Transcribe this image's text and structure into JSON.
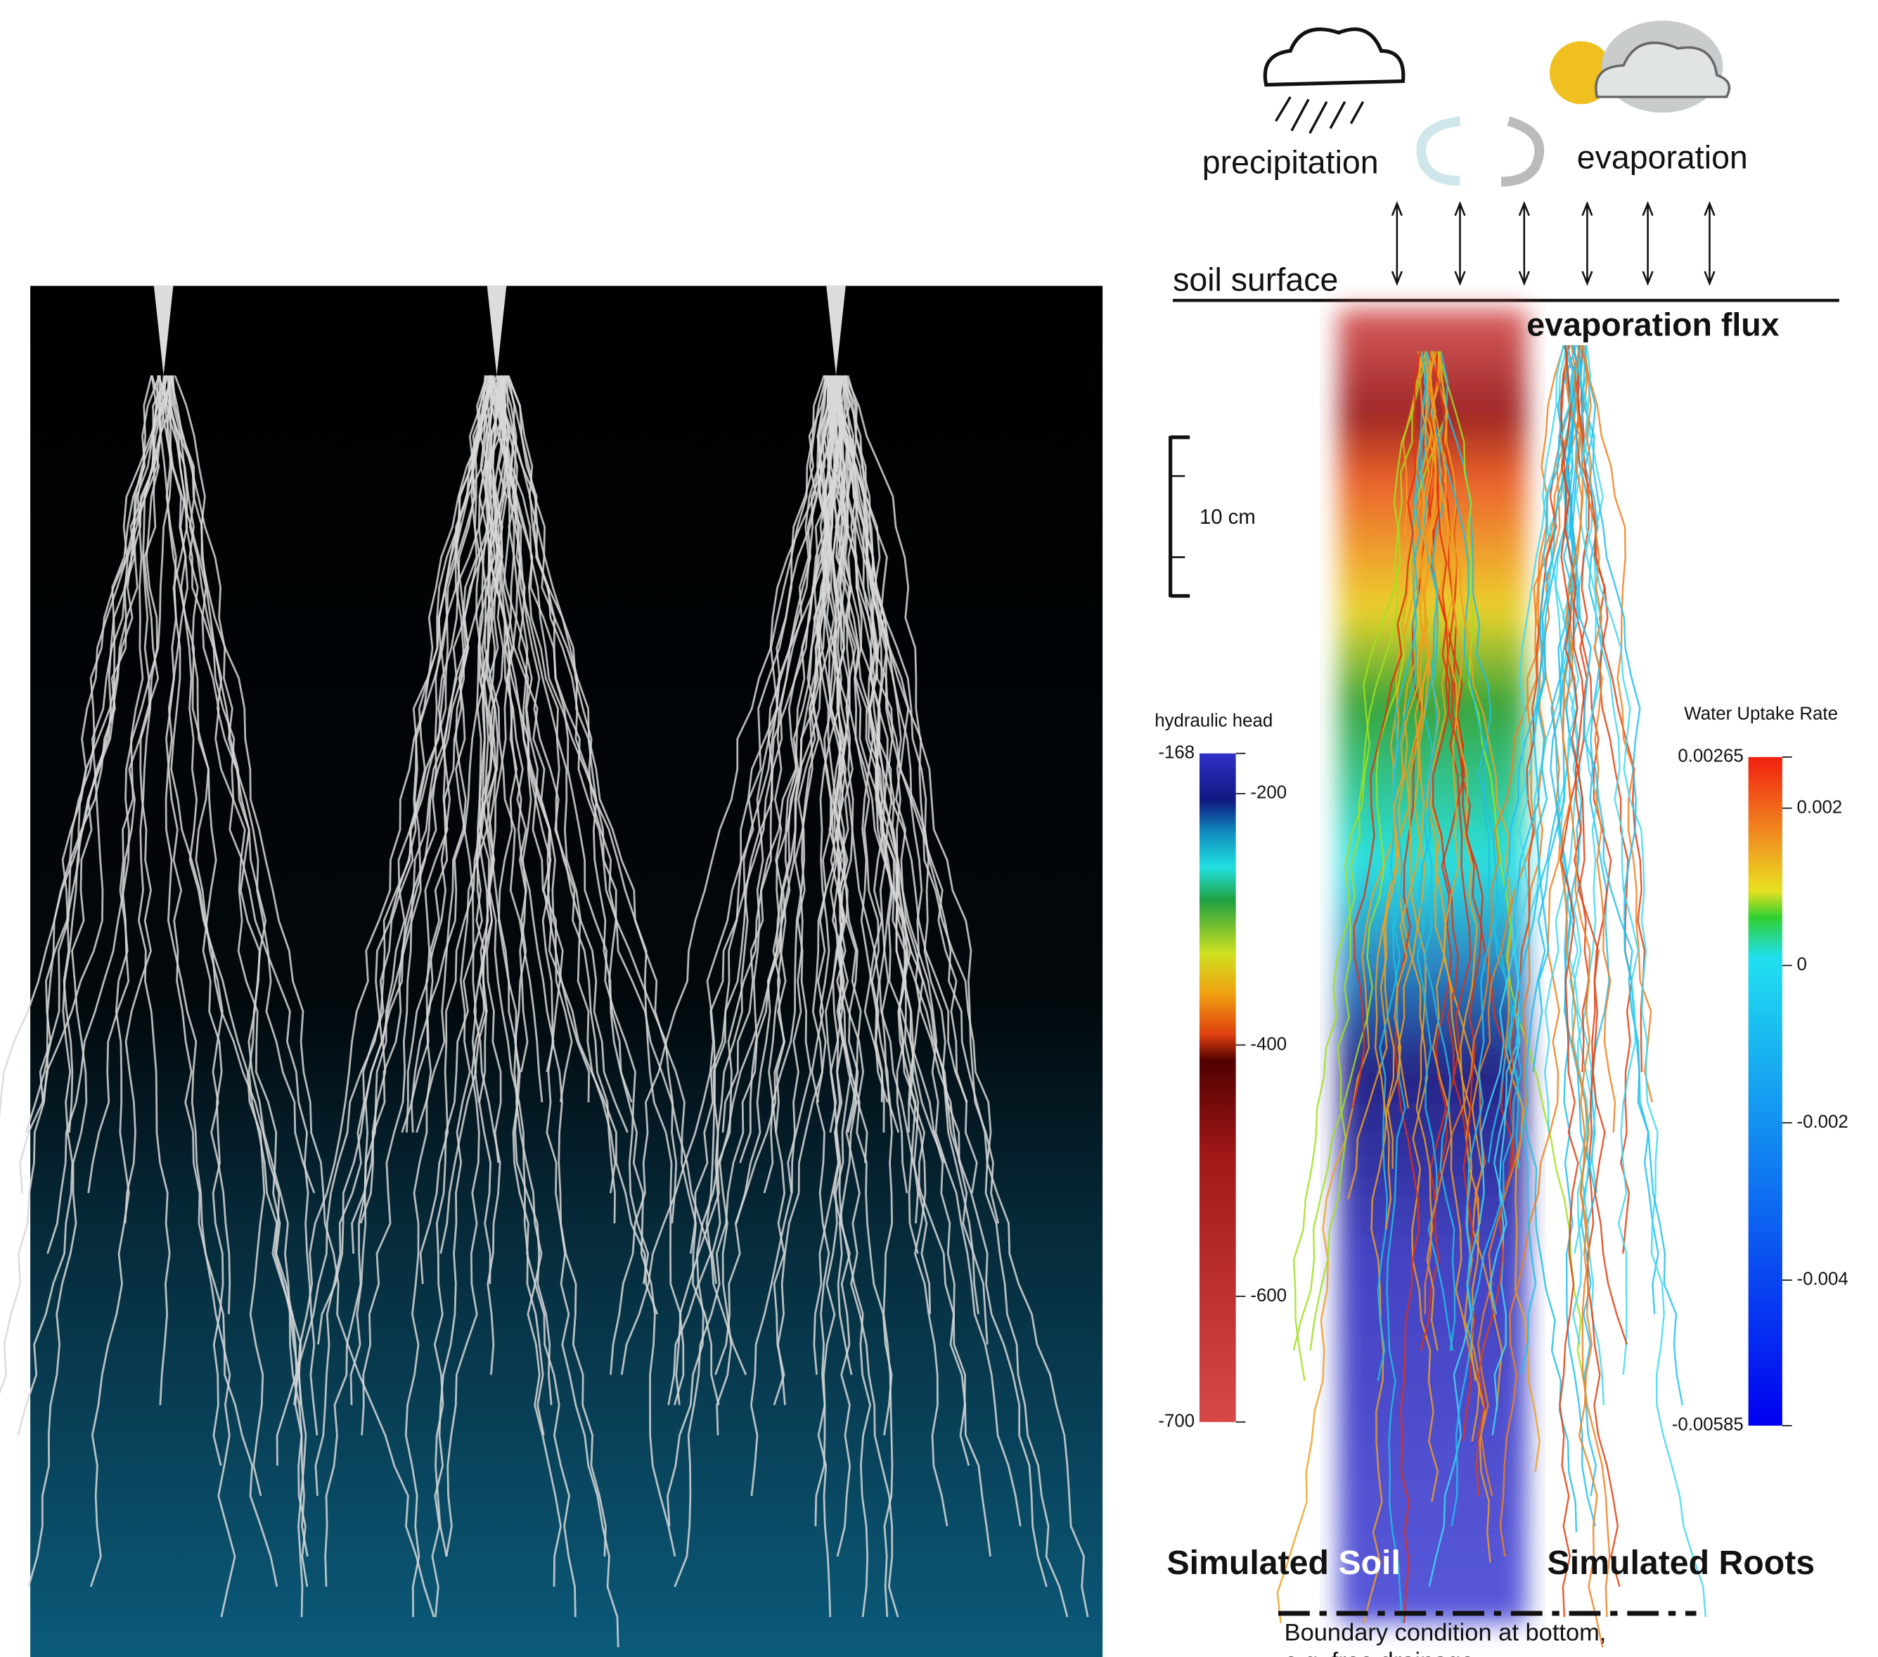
{
  "weather": {
    "precipitation": "precipitation",
    "evaporation": "evaporation"
  },
  "surface": {
    "label": "soil surface",
    "flux": "evaporation flux"
  },
  "scale_bar": {
    "label": "10 cm"
  },
  "hydraulic_head": {
    "title": "hydraulic head",
    "ticks": [
      -168,
      -200,
      -400,
      -600,
      -700
    ]
  },
  "water_uptake": {
    "title": "Water Uptake Rate",
    "ticks": [
      0.00265,
      0.002,
      0,
      -0.002,
      -0.004,
      -0.00585
    ]
  },
  "labels": {
    "soil_first": "Simulated",
    "soil_second": "Soil",
    "roots": "Simulated Roots"
  },
  "boundary": {
    "line1": "Boundary condition at bottom,",
    "line2": "e.g. free drainage"
  }
}
